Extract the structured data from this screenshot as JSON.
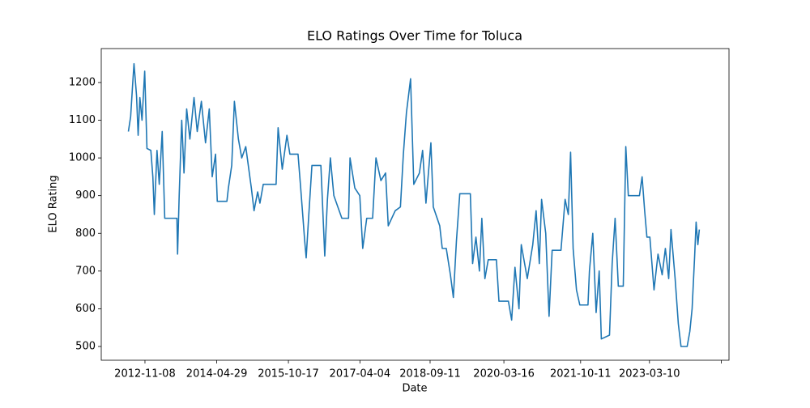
{
  "chart_data": {
    "type": "line",
    "title": "ELO Ratings Over Time for Toluca",
    "x_label": "Date",
    "y_label": "ELO Rating",
    "color": "#1f77b4",
    "x": [
      "2012-07-07",
      "2012-07-24",
      "2012-08-07",
      "2012-08-18",
      "2012-09-06",
      "2012-09-18",
      "2012-10-01",
      "2012-10-17",
      "2012-11-06",
      "2012-11-23",
      "2012-12-22",
      "2013-01-06",
      "2013-01-17",
      "2013-02-06",
      "2013-02-23",
      "2013-03-17",
      "2013-04-05",
      "2013-07-05",
      "2013-07-10",
      "2013-07-22",
      "2013-08-10",
      "2013-08-27",
      "2013-09-16",
      "2013-10-10",
      "2013-11-10",
      "2013-12-04",
      "2014-01-04",
      "2014-02-04",
      "2014-03-04",
      "2014-03-26",
      "2014-04-20",
      "2014-05-03",
      "2014-07-14",
      "2014-07-25",
      "2014-08-19",
      "2014-09-08",
      "2014-10-08",
      "2014-11-02",
      "2014-12-02",
      "2015-01-13",
      "2015-02-02",
      "2015-03-01",
      "2015-03-18",
      "2015-04-12",
      "2015-07-17",
      "2015-08-01",
      "2015-09-01",
      "2015-10-06",
      "2015-10-28",
      "2015-12-28",
      "2016-01-17",
      "2016-02-16",
      "2016-02-27",
      "2016-03-16",
      "2016-04-10",
      "2016-06-16",
      "2016-07-15",
      "2016-08-04",
      "2016-08-26",
      "2016-09-21",
      "2016-11-20",
      "2017-01-09",
      "2017-01-20",
      "2017-02-25",
      "2017-04-03",
      "2017-04-25",
      "2017-05-25",
      "2017-07-08",
      "2017-08-02",
      "2017-09-08",
      "2017-10-13",
      "2017-11-02",
      "2017-12-24",
      "2018-02-01",
      "2018-02-23",
      "2018-03-18",
      "2018-04-18",
      "2018-05-12",
      "2018-06-23",
      "2018-07-17",
      "2018-08-11",
      "2018-09-17",
      "2018-10-05",
      "2018-11-22",
      "2018-12-11",
      "2019-01-10",
      "2019-02-10",
      "2019-03-04",
      "2019-03-27",
      "2019-04-21",
      "2019-07-09",
      "2019-07-26",
      "2019-08-20",
      "2019-09-15",
      "2019-10-03",
      "2019-10-26",
      "2019-11-20",
      "2020-01-20",
      "2020-02-08",
      "2020-04-19",
      "2020-05-13",
      "2020-06-07",
      "2020-07-07",
      "2020-07-24",
      "2020-09-07",
      "2020-10-18",
      "2020-11-12",
      "2020-12-06",
      "2020-12-23",
      "2021-01-23",
      "2021-02-17",
      "2021-03-12",
      "2021-05-17",
      "2021-06-17",
      "2021-07-11",
      "2021-07-28",
      "2021-08-16",
      "2021-09-10",
      "2021-10-05",
      "2021-12-05",
      "2021-12-16",
      "2022-01-10",
      "2022-02-04",
      "2022-02-27",
      "2022-03-15",
      "2022-05-15",
      "2022-06-04",
      "2022-06-26",
      "2022-07-20",
      "2022-08-26",
      "2022-09-14",
      "2022-10-03",
      "2022-12-25",
      "2023-01-14",
      "2023-02-02",
      "2023-02-19",
      "2023-03-13",
      "2023-04-13",
      "2023-05-13",
      "2023-06-13",
      "2023-07-07",
      "2023-08-01",
      "2023-08-18",
      "2023-09-18",
      "2023-10-12",
      "2023-11-01",
      "2023-12-17",
      "2024-01-06",
      "2024-01-23",
      "2024-02-11",
      "2024-02-22",
      "2024-03-06",
      "2024-03-17"
    ],
    "values": [
      1070,
      1110,
      1190,
      1250,
      1165,
      1060,
      1160,
      1100,
      1230,
      1025,
      1020,
      950,
      850,
      1020,
      930,
      1070,
      840,
      840,
      745,
      900,
      1100,
      960,
      1130,
      1050,
      1160,
      1070,
      1150,
      1040,
      1130,
      950,
      1010,
      885,
      885,
      920,
      980,
      1150,
      1050,
      1000,
      1030,
      920,
      860,
      910,
      880,
      930,
      930,
      1080,
      970,
      1060,
      1010,
      1010,
      920,
      780,
      735,
      840,
      980,
      980,
      740,
      890,
      1000,
      900,
      840,
      840,
      1000,
      920,
      900,
      760,
      840,
      840,
      1000,
      940,
      960,
      820,
      860,
      870,
      1010,
      1120,
      1210,
      930,
      960,
      1020,
      880,
      1040,
      870,
      820,
      760,
      760,
      690,
      630,
      780,
      905,
      905,
      720,
      790,
      700,
      840,
      680,
      730,
      730,
      620,
      620,
      570,
      710,
      600,
      770,
      680,
      770,
      860,
      720,
      890,
      800,
      580,
      755,
      755,
      890,
      850,
      1015,
      760,
      650,
      610,
      610,
      700,
      800,
      590,
      700,
      520,
      530,
      720,
      840,
      660,
      660,
      1030,
      900,
      900,
      950,
      860,
      790,
      790,
      650,
      745,
      690,
      760,
      680,
      810,
      680,
      560,
      500,
      500,
      540,
      600,
      740,
      830,
      770,
      810
    ],
    "xlim": [
      "2011-12-17",
      "2024-10-25"
    ],
    "xticks": [
      "2012-11-08",
      "2014-04-29",
      "2015-10-17",
      "2017-04-04",
      "2018-09-11",
      "2020-03-16",
      "2021-10-11",
      "2023-03-10",
      {
        "value": "2024-08-28",
        "label": null
      }
    ],
    "ylim": [
      463.5,
      1290
    ],
    "yticks": [
      500,
      600,
      700,
      800,
      900,
      1000,
      1100,
      1200
    ],
    "grid": false
  }
}
